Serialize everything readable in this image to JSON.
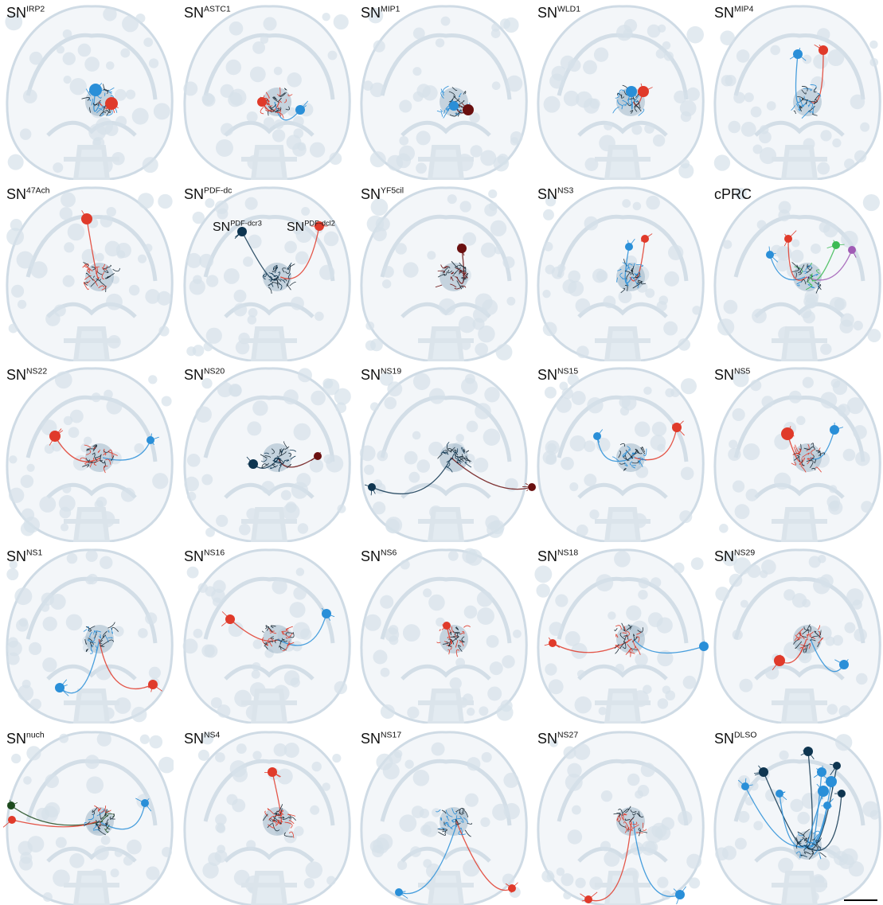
{
  "panels": [
    {
      "label": "SN",
      "superscript": "IRP2"
    },
    {
      "label": "SN",
      "superscript": "ASTC1"
    },
    {
      "label": "SN",
      "superscript": "MIP1"
    },
    {
      "label": "SN",
      "superscript": "WLD1"
    },
    {
      "label": "SN",
      "superscript": "MIP4"
    },
    {
      "label": "SN",
      "superscript": "47Ach"
    },
    {
      "label": "SN",
      "superscript": "PDF-dc",
      "sublabels": [
        {
          "label": "SN",
          "superscript": "PDF-dcr3"
        },
        {
          "label": "SN",
          "superscript": "PDF-dcl2"
        }
      ]
    },
    {
      "label": "SN",
      "superscript": "YF5cil"
    },
    {
      "label": "SN",
      "superscript": "NS3"
    },
    {
      "label": "cPRC"
    },
    {
      "label": "SN",
      "superscript": "NS22"
    },
    {
      "label": "SN",
      "superscript": "NS20"
    },
    {
      "label": "SN",
      "superscript": "NS19"
    },
    {
      "label": "SN",
      "superscript": "NS15"
    },
    {
      "label": "SN",
      "superscript": "NS5"
    },
    {
      "label": "SN",
      "superscript": "NS1"
    },
    {
      "label": "SN",
      "superscript": "NS16"
    },
    {
      "label": "SN",
      "superscript": "NS6"
    },
    {
      "label": "SN",
      "superscript": "NS18"
    },
    {
      "label": "SN",
      "superscript": "NS29"
    },
    {
      "label": "SN",
      "superscript": "nuch"
    },
    {
      "label": "SN",
      "superscript": "NS4"
    },
    {
      "label": "SN",
      "superscript": "NS17"
    },
    {
      "label": "SN",
      "superscript": "NS27"
    },
    {
      "label": "SN",
      "superscript": "DLSO"
    }
  ]
}
